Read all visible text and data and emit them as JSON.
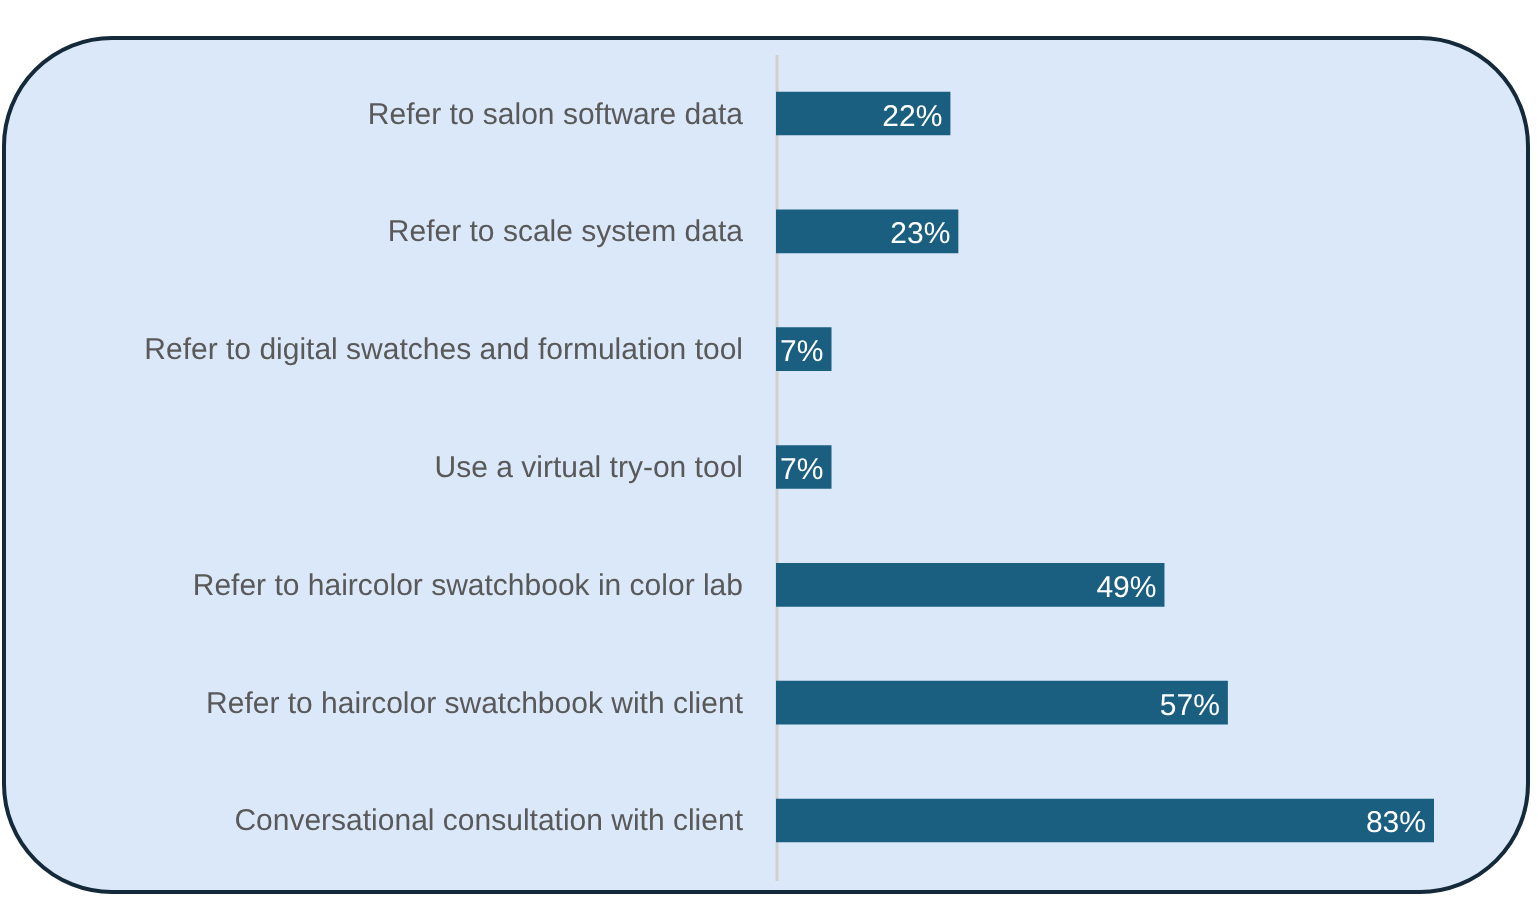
{
  "chart_data": {
    "type": "bar",
    "orientation": "horizontal",
    "categories": [
      "Refer to salon software data",
      "Refer to scale system data",
      "Refer to digital swatches and formulation tool",
      "Use a virtual try-on tool",
      "Refer to haircolor swatchbook in color lab",
      "Refer to haircolor swatchbook with client",
      "Conversational consultation with client"
    ],
    "values": [
      22,
      23,
      7,
      7,
      49,
      57,
      83
    ],
    "value_labels": [
      "22%",
      "23%",
      "7%",
      "7%",
      "49%",
      "57%",
      "83%"
    ],
    "color": "#1a5e80",
    "grid": false
  }
}
